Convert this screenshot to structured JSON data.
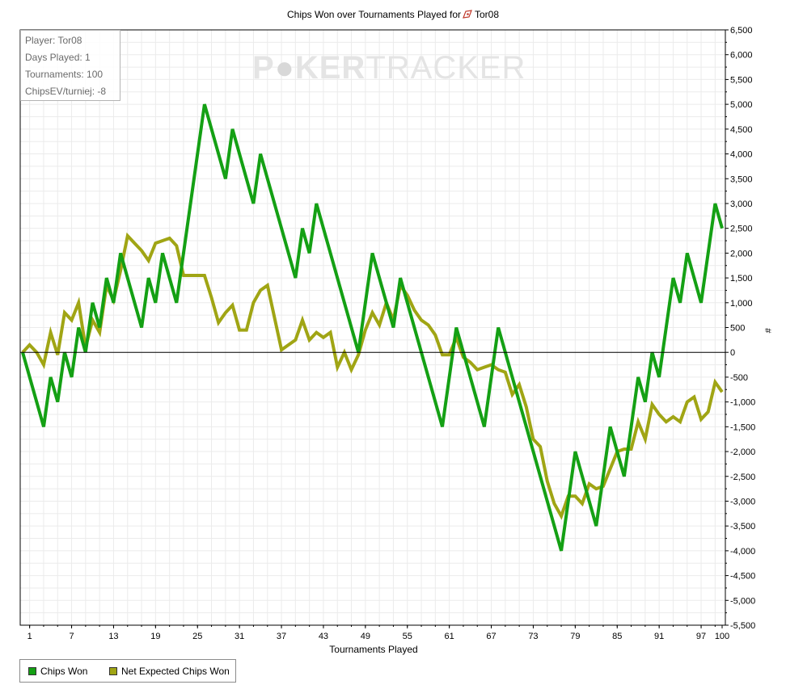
{
  "title": {
    "prefix": "Chips Won over Tournaments Played for",
    "player": "Tor08",
    "icon": "player-icon"
  },
  "info_box": {
    "player": "Player: Tor08",
    "days_played": "Days Played: 1",
    "tournaments": "Tournaments: 100",
    "chipsev": "ChipsEV/turniej: -8"
  },
  "watermark": {
    "part1": "P",
    "ball": "●",
    "part2": "KER",
    "part3": "TRACKER"
  },
  "colors": {
    "chips_won": "#14a014",
    "net_expected": "#a0a514",
    "zero_line": "#000000",
    "grid": "#ebebeb"
  },
  "chart_data": {
    "type": "line",
    "title": "Chips Won over Tournaments Played for Tor08",
    "xlabel": "Tournaments Played",
    "ylabel": "#",
    "xlim": [
      0,
      100
    ],
    "ylim": [
      -5500,
      6500
    ],
    "x_ticks": [
      1,
      7,
      13,
      19,
      25,
      31,
      37,
      43,
      49,
      55,
      61,
      67,
      73,
      79,
      85,
      91,
      97,
      100
    ],
    "y_ticks": [
      6500,
      6000,
      5500,
      5000,
      4500,
      4000,
      3500,
      3000,
      2500,
      2000,
      1500,
      1000,
      500,
      0,
      -500,
      -1000,
      -1500,
      -2000,
      -2500,
      -3000,
      -3500,
      -4000,
      -4500,
      -5000,
      -5500
    ],
    "y_tick_labels": [
      "6,500",
      "6,000",
      "5,500",
      "5,000",
      "4,500",
      "4,000",
      "3,500",
      "3,000",
      "2,500",
      "2,000",
      "1,500",
      "1,000",
      "500",
      "0",
      "-500",
      "-1,000",
      "-1,500",
      "-2,000",
      "-2,500",
      "-3,000",
      "-3,500",
      "-4,000",
      "-4,500",
      "-5,000",
      "-5,500"
    ],
    "legend_position": "bottom-left",
    "grid": true,
    "series": [
      {
        "name": "Chips Won",
        "points": [
          [
            0,
            0
          ],
          [
            3,
            -1500
          ],
          [
            4,
            -500
          ],
          [
            5,
            -1000
          ],
          [
            6,
            0
          ],
          [
            7,
            -500
          ],
          [
            8,
            500
          ],
          [
            9,
            0
          ],
          [
            10,
            1000
          ],
          [
            11,
            500
          ],
          [
            12,
            1500
          ],
          [
            13,
            1000
          ],
          [
            14,
            2000
          ],
          [
            17,
            500
          ],
          [
            18,
            1500
          ],
          [
            19,
            1000
          ],
          [
            20,
            2000
          ],
          [
            22,
            1000
          ],
          [
            26,
            5000
          ],
          [
            29,
            3500
          ],
          [
            30,
            4500
          ],
          [
            33,
            3000
          ],
          [
            34,
            4000
          ],
          [
            39,
            1500
          ],
          [
            40,
            2500
          ],
          [
            41,
            2000
          ],
          [
            42,
            3000
          ],
          [
            48,
            0
          ],
          [
            50,
            2000
          ],
          [
            53,
            500
          ],
          [
            54,
            1500
          ],
          [
            60,
            -1500
          ],
          [
            62,
            500
          ],
          [
            66,
            -1500
          ],
          [
            68,
            500
          ],
          [
            77,
            -4000
          ],
          [
            79,
            -2000
          ],
          [
            82,
            -3500
          ],
          [
            84,
            -1500
          ],
          [
            86,
            -2500
          ],
          [
            88,
            -500
          ],
          [
            89,
            -1000
          ],
          [
            90,
            0
          ],
          [
            91,
            -500
          ],
          [
            93,
            1500
          ],
          [
            94,
            1000
          ],
          [
            95,
            2000
          ],
          [
            97,
            1000
          ],
          [
            99,
            3000
          ],
          [
            100,
            2500
          ]
        ]
      },
      {
        "name": "Net Expected Chips Won",
        "points": [
          [
            0,
            0
          ],
          [
            1,
            150
          ],
          [
            2,
            0
          ],
          [
            3,
            -250
          ],
          [
            4,
            400
          ],
          [
            5,
            -50
          ],
          [
            6,
            800
          ],
          [
            7,
            650
          ],
          [
            8,
            1000
          ],
          [
            9,
            100
          ],
          [
            10,
            650
          ],
          [
            11,
            400
          ],
          [
            12,
            1350
          ],
          [
            13,
            1050
          ],
          [
            14,
            1650
          ],
          [
            15,
            2350
          ],
          [
            16,
            2200
          ],
          [
            17,
            2050
          ],
          [
            18,
            1850
          ],
          [
            19,
            2200
          ],
          [
            20,
            2250
          ],
          [
            21,
            2300
          ],
          [
            22,
            2150
          ],
          [
            23,
            1550
          ],
          [
            24,
            1550
          ],
          [
            25,
            1550
          ],
          [
            26,
            1550
          ],
          [
            27,
            1100
          ],
          [
            28,
            600
          ],
          [
            29,
            800
          ],
          [
            30,
            950
          ],
          [
            31,
            450
          ],
          [
            32,
            450
          ],
          [
            33,
            1000
          ],
          [
            34,
            1250
          ],
          [
            35,
            1350
          ],
          [
            37,
            50
          ],
          [
            38,
            150
          ],
          [
            39,
            250
          ],
          [
            40,
            650
          ],
          [
            41,
            250
          ],
          [
            42,
            400
          ],
          [
            43,
            300
          ],
          [
            44,
            400
          ],
          [
            45,
            -300
          ],
          [
            46,
            0
          ],
          [
            47,
            -350
          ],
          [
            48,
            -50
          ],
          [
            49,
            450
          ],
          [
            50,
            800
          ],
          [
            51,
            550
          ],
          [
            52,
            1000
          ],
          [
            53,
            650
          ],
          [
            54,
            1350
          ],
          [
            55,
            1150
          ],
          [
            56,
            850
          ],
          [
            57,
            650
          ],
          [
            58,
            550
          ],
          [
            59,
            350
          ],
          [
            60,
            -50
          ],
          [
            61,
            -50
          ],
          [
            62,
            300
          ],
          [
            63,
            -100
          ],
          [
            64,
            -200
          ],
          [
            65,
            -350
          ],
          [
            66,
            -300
          ],
          [
            67,
            -250
          ],
          [
            68,
            -350
          ],
          [
            69,
            -400
          ],
          [
            70,
            -850
          ],
          [
            71,
            -650
          ],
          [
            72,
            -1100
          ],
          [
            73,
            -1750
          ],
          [
            74,
            -1900
          ],
          [
            75,
            -2600
          ],
          [
            76,
            -3050
          ],
          [
            77,
            -3300
          ],
          [
            78,
            -2900
          ],
          [
            79,
            -2900
          ],
          [
            80,
            -3050
          ],
          [
            81,
            -2650
          ],
          [
            82,
            -2750
          ],
          [
            83,
            -2700
          ],
          [
            84,
            -2350
          ],
          [
            85,
            -2000
          ],
          [
            86,
            -1950
          ],
          [
            87,
            -1950
          ],
          [
            88,
            -1400
          ],
          [
            89,
            -1750
          ],
          [
            90,
            -1050
          ],
          [
            91,
            -1250
          ],
          [
            92,
            -1400
          ],
          [
            93,
            -1300
          ],
          [
            94,
            -1400
          ],
          [
            95,
            -1000
          ],
          [
            96,
            -900
          ],
          [
            97,
            -1350
          ],
          [
            98,
            -1200
          ],
          [
            99,
            -600
          ],
          [
            100,
            -800
          ]
        ]
      }
    ]
  },
  "legend": {
    "items": [
      {
        "label": "Chips Won",
        "color": "#14a014"
      },
      {
        "label": "Net Expected Chips Won",
        "color": "#a0a514"
      }
    ]
  }
}
